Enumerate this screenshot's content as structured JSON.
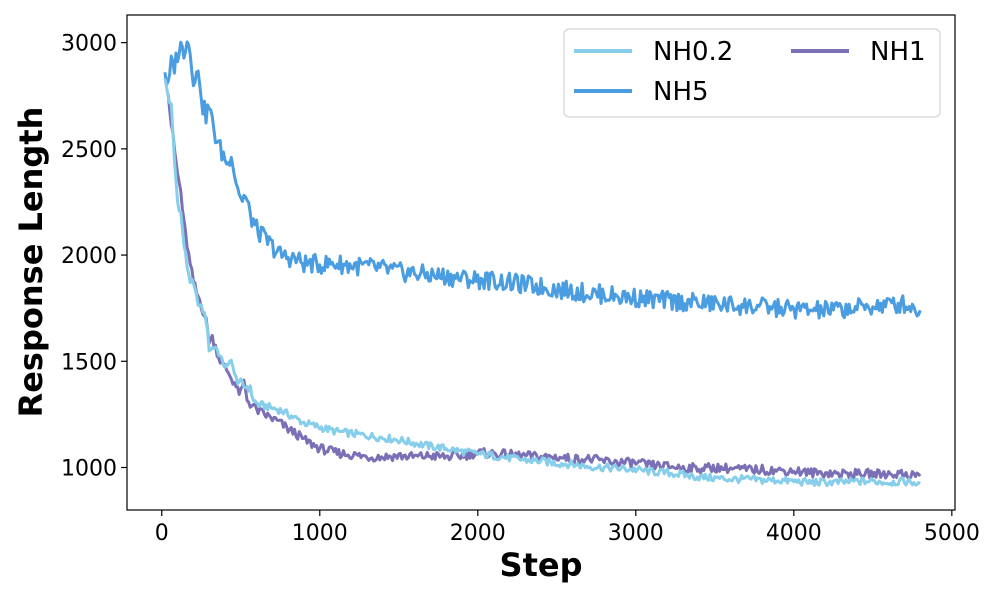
{
  "chart_data": {
    "type": "line",
    "xlabel": "Step",
    "ylabel": "Response Length",
    "xlim": [
      -220,
      5020
    ],
    "ylim": [
      800,
      3130
    ],
    "xticks": [
      0,
      1000,
      2000,
      3000,
      4000,
      5000
    ],
    "yticks": [
      1000,
      1500,
      2000,
      2500,
      3000
    ],
    "legend": {
      "position": "top-right",
      "columns": 2
    },
    "grid": false,
    "series": [
      {
        "name": "NH0.2",
        "color": "#87CEEB",
        "points": [
          [
            20,
            2830
          ],
          [
            40,
            2750
          ],
          [
            60,
            2700
          ],
          [
            80,
            2450
          ],
          [
            100,
            2250
          ],
          [
            120,
            2200
          ],
          [
            140,
            2050
          ],
          [
            160,
            1950
          ],
          [
            180,
            1880
          ],
          [
            200,
            1860
          ],
          [
            220,
            1800
          ],
          [
            240,
            1760
          ],
          [
            260,
            1740
          ],
          [
            280,
            1700
          ],
          [
            300,
            1560
          ],
          [
            320,
            1560
          ],
          [
            340,
            1570
          ],
          [
            360,
            1540
          ],
          [
            380,
            1500
          ],
          [
            400,
            1480
          ],
          [
            420,
            1470
          ],
          [
            440,
            1520
          ],
          [
            460,
            1430
          ],
          [
            480,
            1410
          ],
          [
            500,
            1400
          ],
          [
            520,
            1380
          ],
          [
            540,
            1380
          ],
          [
            560,
            1370
          ],
          [
            580,
            1320
          ],
          [
            600,
            1300
          ],
          [
            650,
            1290
          ],
          [
            700,
            1280
          ],
          [
            750,
            1270
          ],
          [
            800,
            1250
          ],
          [
            850,
            1230
          ],
          [
            900,
            1210
          ],
          [
            950,
            1200
          ],
          [
            1000,
            1190
          ],
          [
            1100,
            1170
          ],
          [
            1200,
            1160
          ],
          [
            1300,
            1150
          ],
          [
            1400,
            1140
          ],
          [
            1500,
            1130
          ],
          [
            1600,
            1115
          ],
          [
            1700,
            1100
          ],
          [
            1800,
            1090
          ],
          [
            1900,
            1075
          ],
          [
            2000,
            1065
          ],
          [
            2100,
            1055
          ],
          [
            2200,
            1045
          ],
          [
            2300,
            1035
          ],
          [
            2400,
            1030
          ],
          [
            2500,
            1020
          ],
          [
            2600,
            1015
          ],
          [
            2700,
            1005
          ],
          [
            2800,
            1000
          ],
          [
            2900,
            995
          ],
          [
            3000,
            990
          ],
          [
            3100,
            980
          ],
          [
            3200,
            975
          ],
          [
            3300,
            965
          ],
          [
            3400,
            955
          ],
          [
            3500,
            950
          ],
          [
            3600,
            945
          ],
          [
            3700,
            945
          ],
          [
            3800,
            940
          ],
          [
            3900,
            940
          ],
          [
            4000,
            935
          ],
          [
            4100,
            930
          ],
          [
            4200,
            930
          ],
          [
            4300,
            930
          ],
          [
            4400,
            935
          ],
          [
            4500,
            935
          ],
          [
            4600,
            930
          ],
          [
            4700,
            935
          ],
          [
            4800,
            925
          ]
        ]
      },
      {
        "name": "NH1",
        "color": "#7B6FB5",
        "points": [
          [
            40,
            2760
          ],
          [
            60,
            2620
          ],
          [
            80,
            2500
          ],
          [
            100,
            2380
          ],
          [
            120,
            2300
          ],
          [
            140,
            2150
          ],
          [
            160,
            2050
          ],
          [
            180,
            1950
          ],
          [
            200,
            1880
          ],
          [
            220,
            1820
          ],
          [
            240,
            1790
          ],
          [
            260,
            1740
          ],
          [
            280,
            1690
          ],
          [
            300,
            1600
          ],
          [
            320,
            1610
          ],
          [
            340,
            1570
          ],
          [
            360,
            1520
          ],
          [
            380,
            1490
          ],
          [
            400,
            1470
          ],
          [
            420,
            1450
          ],
          [
            440,
            1420
          ],
          [
            460,
            1400
          ],
          [
            480,
            1360
          ],
          [
            500,
            1350
          ],
          [
            520,
            1400
          ],
          [
            540,
            1320
          ],
          [
            560,
            1300
          ],
          [
            580,
            1290
          ],
          [
            600,
            1270
          ],
          [
            650,
            1250
          ],
          [
            700,
            1230
          ],
          [
            750,
            1210
          ],
          [
            800,
            1180
          ],
          [
            850,
            1160
          ],
          [
            900,
            1130
          ],
          [
            950,
            1110
          ],
          [
            1000,
            1090
          ],
          [
            1100,
            1070
          ],
          [
            1200,
            1060
          ],
          [
            1300,
            1050
          ],
          [
            1400,
            1050
          ],
          [
            1500,
            1055
          ],
          [
            1600,
            1050
          ],
          [
            1700,
            1055
          ],
          [
            1800,
            1050
          ],
          [
            1900,
            1055
          ],
          [
            2000,
            1070
          ],
          [
            2100,
            1065
          ],
          [
            2200,
            1060
          ],
          [
            2300,
            1055
          ],
          [
            2400,
            1050
          ],
          [
            2500,
            1050
          ],
          [
            2600,
            1040
          ],
          [
            2700,
            1040
          ],
          [
            2800,
            1030
          ],
          [
            2900,
            1025
          ],
          [
            3000,
            1020
          ],
          [
            3100,
            1010
          ],
          [
            3200,
            1005
          ],
          [
            3300,
            1000
          ],
          [
            3400,
            995
          ],
          [
            3500,
            1000
          ],
          [
            3600,
            995
          ],
          [
            3700,
            990
          ],
          [
            3800,
            990
          ],
          [
            3900,
            985
          ],
          [
            4000,
            985
          ],
          [
            4100,
            975
          ],
          [
            4200,
            975
          ],
          [
            4300,
            970
          ],
          [
            4400,
            970
          ],
          [
            4500,
            970
          ],
          [
            4600,
            970
          ],
          [
            4700,
            970
          ],
          [
            4800,
            960
          ]
        ]
      },
      {
        "name": "NH5",
        "color": "#4A9DE0",
        "points": [
          [
            20,
            2860
          ],
          [
            40,
            2780
          ],
          [
            60,
            2900
          ],
          [
            80,
            2890
          ],
          [
            100,
            2950
          ],
          [
            120,
            2980
          ],
          [
            140,
            2960
          ],
          [
            160,
            3030
          ],
          [
            180,
            2950
          ],
          [
            200,
            2840
          ],
          [
            220,
            2850
          ],
          [
            240,
            2830
          ],
          [
            260,
            2700
          ],
          [
            280,
            2660
          ],
          [
            300,
            2700
          ],
          [
            320,
            2620
          ],
          [
            340,
            2560
          ],
          [
            360,
            2520
          ],
          [
            380,
            2480
          ],
          [
            400,
            2460
          ],
          [
            420,
            2420
          ],
          [
            440,
            2500
          ],
          [
            460,
            2380
          ],
          [
            480,
            2330
          ],
          [
            500,
            2260
          ],
          [
            520,
            2280
          ],
          [
            540,
            2250
          ],
          [
            560,
            2180
          ],
          [
            580,
            2160
          ],
          [
            600,
            2120
          ],
          [
            650,
            2080
          ],
          [
            700,
            2040
          ],
          [
            750,
            2000
          ],
          [
            800,
            1990
          ],
          [
            850,
            1980
          ],
          [
            900,
            1960
          ],
          [
            950,
            1960
          ],
          [
            1000,
            1955
          ],
          [
            1100,
            1960
          ],
          [
            1200,
            1950
          ],
          [
            1300,
            1945
          ],
          [
            1400,
            1935
          ],
          [
            1500,
            1920
          ],
          [
            1600,
            1915
          ],
          [
            1700,
            1905
          ],
          [
            1800,
            1900
          ],
          [
            1900,
            1890
          ],
          [
            2000,
            1885
          ],
          [
            2100,
            1880
          ],
          [
            2200,
            1870
          ],
          [
            2300,
            1860
          ],
          [
            2400,
            1850
          ],
          [
            2500,
            1840
          ],
          [
            2600,
            1830
          ],
          [
            2700,
            1820
          ],
          [
            2800,
            1815
          ],
          [
            2900,
            1805
          ],
          [
            3000,
            1800
          ],
          [
            3100,
            1790
          ],
          [
            3200,
            1785
          ],
          [
            3300,
            1780
          ],
          [
            3400,
            1775
          ],
          [
            3500,
            1770
          ],
          [
            3600,
            1765
          ],
          [
            3700,
            1760
          ],
          [
            3800,
            1755
          ],
          [
            3900,
            1750
          ],
          [
            4000,
            1745
          ],
          [
            4100,
            1740
          ],
          [
            4200,
            1740
          ],
          [
            4300,
            1745
          ],
          [
            4400,
            1750
          ],
          [
            4500,
            1760
          ],
          [
            4600,
            1765
          ],
          [
            4700,
            1770
          ],
          [
            4800,
            1740
          ]
        ]
      }
    ]
  }
}
